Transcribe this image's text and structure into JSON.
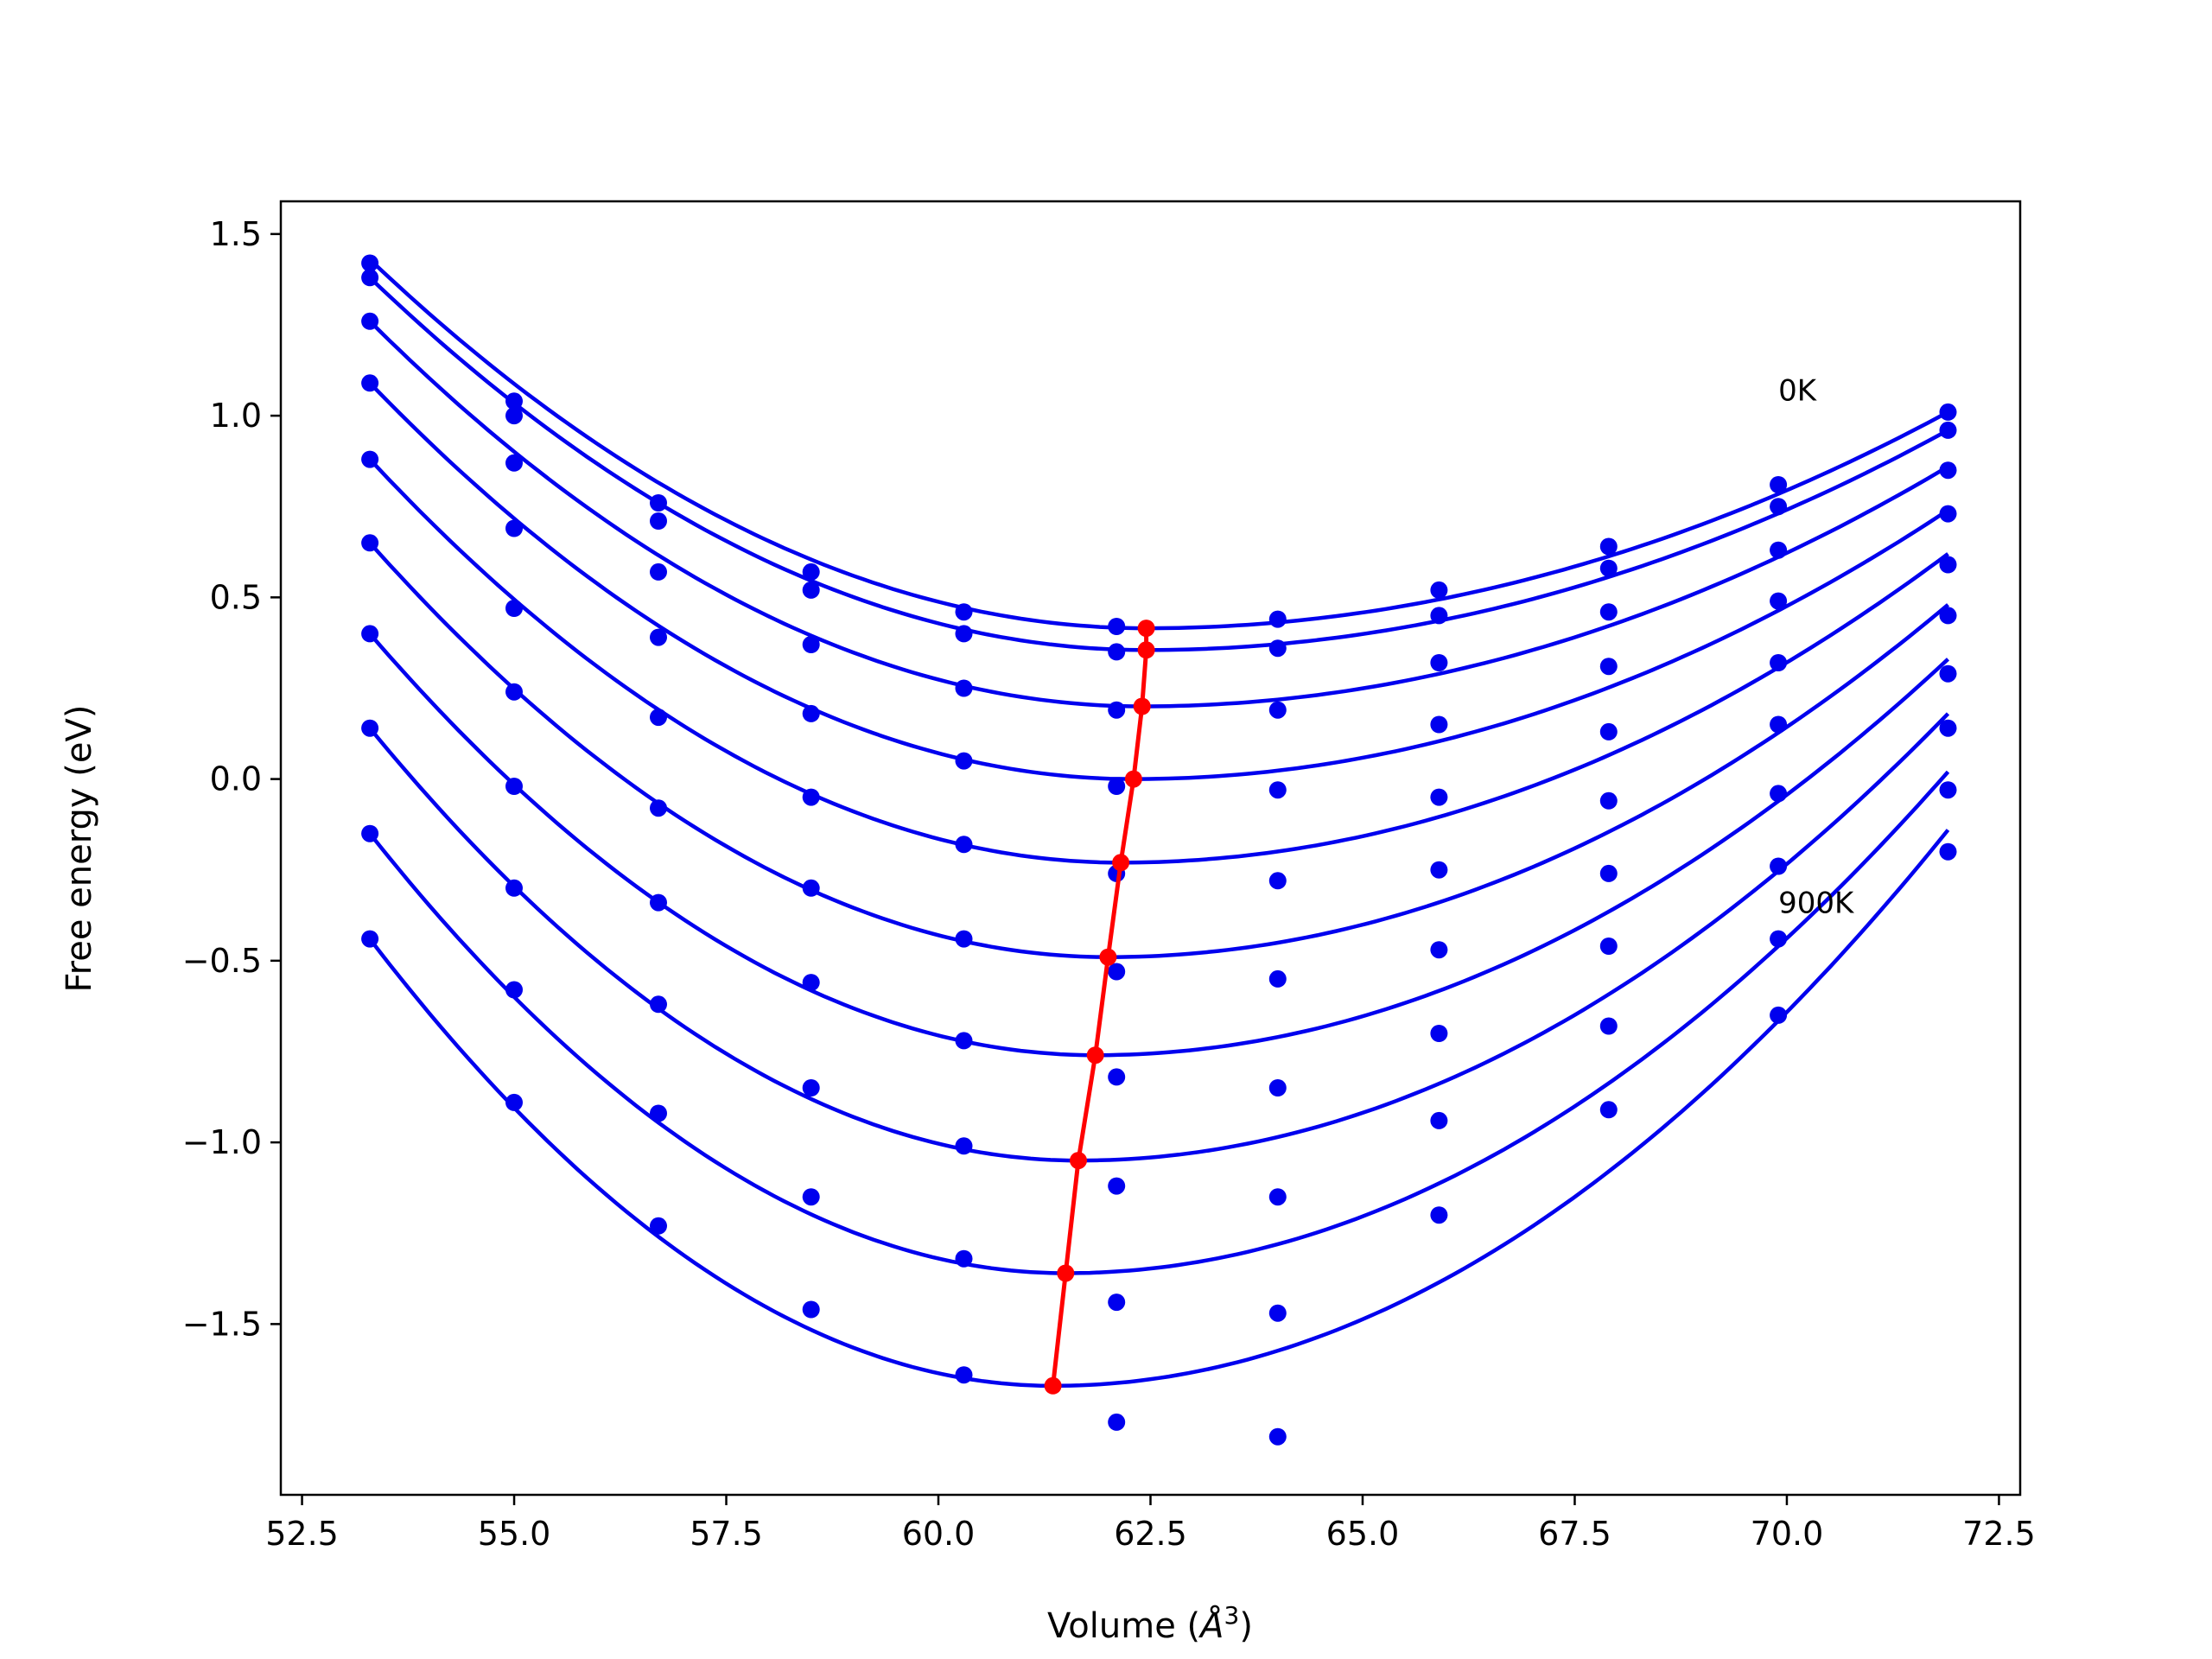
{
  "chart_data": {
    "type": "line",
    "title": "",
    "xlabel": "Volume (",
    "xlabel_symbol": "Å",
    "xlabel_sup": "3",
    "xlabel_close": ")",
    "ylabel": "Free energy (eV)",
    "xlim": [
      52.25,
      72.75
    ],
    "ylim": [
      -1.97,
      1.59
    ],
    "grid": false,
    "xticks": [
      52.5,
      55.0,
      57.5,
      60.0,
      62.5,
      65.0,
      67.5,
      70.0,
      72.5
    ],
    "xtick_labels": [
      "52.5",
      "55.0",
      "57.5",
      "60.0",
      "62.5",
      "65.0",
      "67.5",
      "70.0",
      "72.5"
    ],
    "yticks": [
      1.5,
      1.0,
      0.5,
      0.0,
      -0.5,
      -1.0,
      -1.5
    ],
    "ytick_labels": [
      "1.5",
      "1.0",
      "0.5",
      "0.0",
      "−0.5",
      "−1.0",
      "−1.5"
    ],
    "annotations": [
      {
        "text": "0K",
        "x": 69.9,
        "y": 1.07
      },
      {
        "text": "900K",
        "x": 69.9,
        "y": -0.34
      }
    ],
    "volumes": [
      53.3,
      55.0,
      56.7,
      58.5,
      60.3,
      62.1,
      64.0,
      65.9,
      67.9,
      69.9,
      71.9
    ],
    "series": [
      {
        "points": [
          1.42,
          1.04,
          0.76,
          0.57,
          0.46,
          0.42,
          0.44,
          0.52,
          0.64,
          0.81,
          1.01
        ],
        "fit_min": [
          62.45,
          0.415
        ],
        "fit_left": 1.43,
        "fit_right": 1.01
      },
      {
        "points": [
          1.38,
          1.0,
          0.71,
          0.52,
          0.4,
          0.35,
          0.36,
          0.45,
          0.58,
          0.75,
          0.96
        ],
        "fit_min": [
          62.45,
          0.355
        ],
        "fit_right": 0.96
      },
      {
        "points": [
          1.26,
          0.87,
          0.57,
          0.37,
          0.25,
          0.19,
          0.19,
          0.32,
          0.46,
          0.63,
          0.85
        ],
        "fit_min": [
          62.4,
          0.2
        ],
        "fit_right": 0.86
      },
      {
        "points": [
          1.09,
          0.69,
          0.39,
          0.18,
          0.05,
          -0.02,
          -0.03,
          0.15,
          0.31,
          0.49,
          0.73
        ],
        "fit_min": [
          62.3,
          0.0
        ],
        "fit_right": 0.74
      },
      {
        "points": [
          0.88,
          0.47,
          0.17,
          -0.05,
          -0.18,
          -0.26,
          -0.28,
          -0.05,
          0.13,
          0.32,
          0.59
        ],
        "fit_min": [
          62.15,
          -0.23
        ],
        "fit_right": 0.62
      },
      {
        "points": [
          0.65,
          0.24,
          -0.08,
          -0.3,
          -0.44,
          -0.53,
          -0.55,
          -0.25,
          -0.06,
          0.15,
          0.45
        ],
        "fit_min": [
          62.0,
          -0.49
        ],
        "fit_right": 0.48
      },
      {
        "points": [
          0.4,
          -0.02,
          -0.34,
          -0.56,
          -0.72,
          -0.82,
          -0.85,
          -0.47,
          -0.26,
          -0.04,
          0.29
        ],
        "fit_min": [
          61.85,
          -0.76
        ],
        "fit_right": 0.33
      },
      {
        "points": [
          0.14,
          -0.3,
          -0.62,
          -0.85,
          -1.01,
          -1.12,
          -1.15,
          -0.7,
          -0.46,
          -0.24,
          0.14
        ],
        "fit_min": [
          61.65,
          -1.05
        ],
        "fit_right": 0.18
      },
      {
        "points": [
          -0.15,
          -0.58,
          -0.92,
          -1.15,
          -1.32,
          -1.44,
          -1.47,
          -0.94,
          -0.68,
          -0.44,
          -0.03
        ],
        "fit_min": [
          61.5,
          -1.36
        ],
        "fit_right": 0.02
      },
      {
        "points": [
          -0.44,
          -0.89,
          -1.23,
          -1.46,
          -1.64,
          -1.77,
          -1.81,
          -1.2,
          -0.91,
          -0.65,
          -0.2
        ],
        "fit_min": [
          61.35,
          -1.67
        ],
        "fit_right": -0.14
      }
    ],
    "minima_line": {
      "x": [
        62.45,
        62.45,
        62.4,
        62.3,
        62.15,
        62.0,
        61.85,
        61.65,
        61.5,
        61.35
      ],
      "y": [
        0.415,
        0.355,
        0.2,
        0.0,
        -0.23,
        -0.49,
        -0.76,
        -1.05,
        -1.36,
        -1.67
      ]
    },
    "colors": {
      "curves": "#0000ee",
      "minima": "#ff0000",
      "axes": "#000000"
    }
  }
}
